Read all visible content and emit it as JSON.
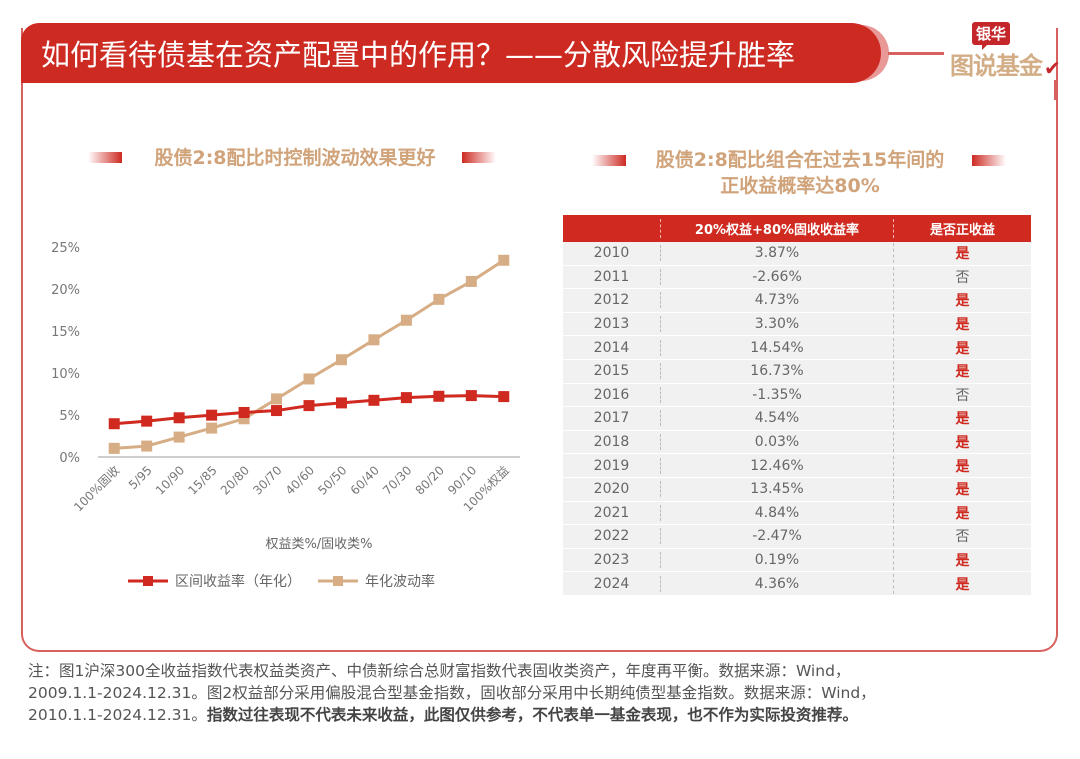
{
  "header": {
    "title": "如何看待债基在资产配置中的作用？——分散风险提升胜率",
    "logo_badge": "银华",
    "logo_brand": "图说基金",
    "logo_check": "✔"
  },
  "left_panel": {
    "subtitle": "股债2:8配比时控制波动效果更好"
  },
  "chart_data": {
    "type": "line",
    "title": "股债2:8配比时控制波动效果更好",
    "xlabel": "权益类%/固收类%",
    "ylabel": "",
    "categories": [
      "100%固收",
      "5/95",
      "10/90",
      "15/85",
      "20/80",
      "30/70",
      "40/60",
      "50/50",
      "60/40",
      "70/30",
      "80/20",
      "90/10",
      "100%权益"
    ],
    "yticks": [
      "0%",
      "5%",
      "10%",
      "15%",
      "20%",
      "25%"
    ],
    "ylim": [
      0,
      25
    ],
    "grid": false,
    "legend_position": "bottom",
    "series": [
      {
        "name": "区间收益率（年化）",
        "color": "#d0291f",
        "values": [
          3.96,
          4.27,
          4.67,
          4.98,
          5.3,
          5.53,
          6.12,
          6.44,
          6.75,
          7.07,
          7.23,
          7.31,
          7.19
        ]
      },
      {
        "name": "年化波动率",
        "color": "#d6ad84",
        "values": [
          1.03,
          1.3,
          2.37,
          3.44,
          4.55,
          6.92,
          9.29,
          11.58,
          13.95,
          16.28,
          18.77,
          20.9,
          23.42
        ]
      }
    ]
  },
  "right_panel": {
    "subtitle_line1": "股债2:8配比组合在过去15年间的",
    "subtitle_line2": "正收益概率达80%",
    "table": {
      "headers": [
        "",
        "20%权益+80%固收收益率",
        "是否正收益"
      ],
      "rows": [
        {
          "year": "2010",
          "ret": "3.87%",
          "pos": "是",
          "is_pos": true
        },
        {
          "year": "2011",
          "ret": "-2.66%",
          "pos": "否",
          "is_pos": false
        },
        {
          "year": "2012",
          "ret": "4.73%",
          "pos": "是",
          "is_pos": true
        },
        {
          "year": "2013",
          "ret": "3.30%",
          "pos": "是",
          "is_pos": true
        },
        {
          "year": "2014",
          "ret": "14.54%",
          "pos": "是",
          "is_pos": true
        },
        {
          "year": "2015",
          "ret": "16.73%",
          "pos": "是",
          "is_pos": true
        },
        {
          "year": "2016",
          "ret": "-1.35%",
          "pos": "否",
          "is_pos": false
        },
        {
          "year": "2017",
          "ret": "4.54%",
          "pos": "是",
          "is_pos": true
        },
        {
          "year": "2018",
          "ret": "0.03%",
          "pos": "是",
          "is_pos": true
        },
        {
          "year": "2019",
          "ret": "12.46%",
          "pos": "是",
          "is_pos": true
        },
        {
          "year": "2020",
          "ret": "13.45%",
          "pos": "是",
          "is_pos": true
        },
        {
          "year": "2021",
          "ret": "4.84%",
          "pos": "是",
          "is_pos": true
        },
        {
          "year": "2022",
          "ret": "-2.47%",
          "pos": "否",
          "is_pos": false
        },
        {
          "year": "2023",
          "ret": "0.19%",
          "pos": "是",
          "is_pos": true
        },
        {
          "year": "2024",
          "ret": "4.36%",
          "pos": "是",
          "is_pos": true
        }
      ]
    }
  },
  "notes": {
    "line1": "注：图1沪深300全收益指数代表权益类资产、中债新综合总财富指数代表固收类资产，年度再平衡。数据来源：Wind，",
    "line2": "2009.1.1-2024.12.31。图2权益部分采用偏股混合型基金指数，固收部分采用中长期纯债型基金指数。数据来源：Wind，",
    "line3_normal": "2010.1.1-2024.12.31。",
    "line3_bold": "指数过往表现不代表未来收益，此图仅供参考，不代表单一基金表现，也不作为实际投资推荐。"
  }
}
